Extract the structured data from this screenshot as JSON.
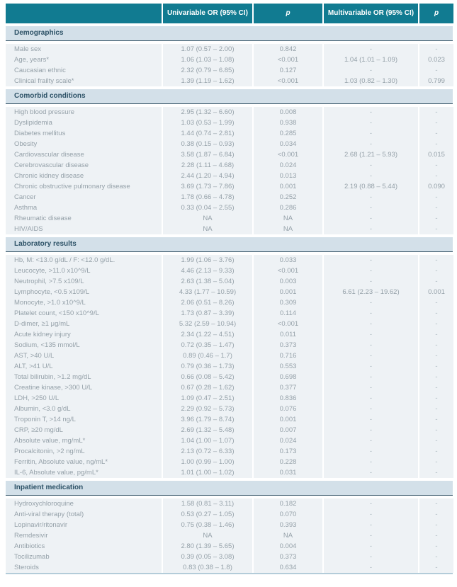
{
  "colors": {
    "header_teal": "#117b91",
    "section_band_blue": "#d3e0e9",
    "section_border_dark": "#3c5a6c",
    "row_background": "#eef2f5",
    "bottom_rule_blue": "#b3ccd9",
    "body_text_gray": "#95a1a9",
    "section_text_navy": "#2c5166",
    "header_text": "#ffffff"
  },
  "table": {
    "columns": [
      "",
      "Univariable OR (95% CI)",
      "p",
      "Multivariable OR (95% CI)",
      "p"
    ],
    "sections": [
      {
        "title": "Demographics",
        "rows": [
          {
            "label": "Male sex",
            "or1": "1.07 (0.57 – 2.00)",
            "p1": "0.842",
            "or2": "-",
            "p2": "-"
          },
          {
            "label": "Age, years*",
            "or1": "1.06 (1.03 – 1.08)",
            "p1": "<0.001",
            "or2": "1.04 (1.01 – 1.09)",
            "p2": "0.023"
          },
          {
            "label": "Caucasian ethnic",
            "or1": "2.32 (0.79 – 6.85)",
            "p1": "0.127",
            "or2": "-",
            "p2": "-"
          },
          {
            "label": "Clinical frailty scale*",
            "or1": "1.39 (1.19 – 1.62)",
            "p1": "<0.001",
            "or2": "1.03 (0.82 – 1.30)",
            "p2": "0.799"
          }
        ]
      },
      {
        "title": "Comorbid conditions",
        "rows": [
          {
            "label": "High blood pressure",
            "or1": "2.95 (1.32 – 6.60)",
            "p1": "0.008",
            "or2": "-",
            "p2": "-"
          },
          {
            "label": "Dyslipidemia",
            "or1": "1.03 (0.53 – 1.99)",
            "p1": "0.938",
            "or2": "-",
            "p2": "-"
          },
          {
            "label": "Diabetes mellitus",
            "or1": "1.44 (0.74 – 2.81)",
            "p1": "0.285",
            "or2": "-",
            "p2": "-"
          },
          {
            "label": "Obesity",
            "or1": "0.38 (0.15 – 0.93)",
            "p1": "0.034",
            "or2": "-",
            "p2": "-"
          },
          {
            "label": "Cardiovascular disease",
            "or1": "3.58 (1.87 – 6.84)",
            "p1": "<0.001",
            "or2": "2.68 (1.21 – 5.93)",
            "p2": "0.015"
          },
          {
            "label": "Cerebrovascular disease",
            "or1": "2.28 (1.11 – 4.68)",
            "p1": "0.024",
            "or2": "-",
            "p2": "-"
          },
          {
            "label": "Chronic kidney disease",
            "or1": "2.44 (1.20 – 4.94)",
            "p1": "0.013",
            "or2": "-",
            "p2": "-"
          },
          {
            "label": "Chronic obstructive pulmonary disease",
            "or1": "3.69 (1.73 – 7.86)",
            "p1": "0.001",
            "or2": "2.19 (0.88 – 5.44)",
            "p2": "0.090"
          },
          {
            "label": "Cancer",
            "or1": "1.78 (0.66 – 4.78)",
            "p1": "0.252",
            "or2": "-",
            "p2": "-"
          },
          {
            "label": "Asthma",
            "or1": "0.33 (0.04 – 2.55)",
            "p1": "0.286",
            "or2": "-",
            "p2": "-"
          },
          {
            "label": "Rheumatic disease",
            "or1": "NA",
            "p1": "NA",
            "or2": "-",
            "p2": "-"
          },
          {
            "label": "HIV/AIDS",
            "or1": "NA",
            "p1": "NA",
            "or2": "-",
            "p2": "-"
          }
        ]
      },
      {
        "title": "Laboratory results",
        "rows": [
          {
            "label": "Hb, M: <13.0 g/dL / F: <12.0 g/dL.",
            "or1": "1.99 (1.06 – 3.76)",
            "p1": "0.033",
            "or2": "-",
            "p2": "-"
          },
          {
            "label": "Leucocyte, >11.0 x10^9/L",
            "or1": "4.46 (2.13 – 9.33)",
            "p1": "<0.001",
            "or2": "-",
            "p2": "-"
          },
          {
            "label": "Neutrophil, >7.5 x109/L",
            "or1": "2.63 (1.38 – 5.04)",
            "p1": "0.003",
            "or2": "-",
            "p2": "-"
          },
          {
            "label": "Lymphocyte, <0.5 x109/L",
            "or1": "4.33 (1.77 – 10.59)",
            "p1": "0.001",
            "or2": "6.61 (2.23 – 19.62)",
            "p2": "0.001"
          },
          {
            "label": "Monocyte, >1.0 x10^9/L",
            "or1": "2.06 (0.51 – 8.26)",
            "p1": "0.309",
            "or2": "-",
            "p2": "-"
          },
          {
            "label": "Platelet count, <150 x10^9/L",
            "or1": "1.73 (0.87 – 3.39)",
            "p1": "0.114",
            "or2": "-",
            "p2": "-"
          },
          {
            "label": "D-dimer, ≥1 μg/mL",
            "or1": "5.32 (2.59 – 10.94)",
            "p1": "<0.001",
            "or2": "-",
            "p2": "-"
          },
          {
            "label": "Acute kidney injury",
            "or1": "2.34 (1.22 – 4.51)",
            "p1": "0.011",
            "or2": "-",
            "p2": "-"
          },
          {
            "label": "Sodium, <135 mmol/L",
            "or1": "0.72 (0.35 – 1.47)",
            "p1": "0.373",
            "or2": "-",
            "p2": "-"
          },
          {
            "label": "AST, >40 U/L",
            "or1": "0.89 (0.46 – 1.7)",
            "p1": "0.716",
            "or2": "-",
            "p2": "-"
          },
          {
            "label": "ALT, >41 U/L",
            "or1": "0.79 (0.36 – 1.73)",
            "p1": "0.553",
            "or2": "-",
            "p2": "-"
          },
          {
            "label": "Total bilirubin, >1.2 mg/dL",
            "or1": "0.66 (0.08 – 5.42)",
            "p1": "0.698",
            "or2": "-",
            "p2": "-"
          },
          {
            "label": "Creatine kinase, >300 U/L",
            "or1": "0.67 (0.28 – 1.62)",
            "p1": "0.377",
            "or2": "-",
            "p2": "-"
          },
          {
            "label": "LDH, >250 U/L",
            "or1": "1.09 (0.47 – 2.51)",
            "p1": "0.836",
            "or2": "-",
            "p2": "-"
          },
          {
            "label": "Albumin, <3.0 g/dL",
            "or1": "2.29 (0.92 – 5.73)",
            "p1": "0.076",
            "or2": "-",
            "p2": "-"
          },
          {
            "label": "Troponin T, >14 ng/L",
            "or1": "3.96 (1.79 – 8.74)",
            "p1": "0.001",
            "or2": "-",
            "p2": "-"
          },
          {
            "label": "CRP, ≥20 mg/dL",
            "or1": "2.69 (1.32 – 5.48)",
            "p1": "0.007",
            "or2": "-",
            "p2": "-"
          },
          {
            "label": "Absolute value, mg/mL*",
            "or1": "1.04 (1.00 – 1.07)",
            "p1": "0.024",
            "or2": "-",
            "p2": "-"
          },
          {
            "label": "Procalcitonin, >2 ng/mL",
            "or1": "2.13 (0.72 – 6.33)",
            "p1": "0.173",
            "or2": "-",
            "p2": "-"
          },
          {
            "label": "Ferritin, Absolute value, ng/mL*",
            "or1": "1.00 (0.99 – 1.00)",
            "p1": "0.228",
            "or2": "-",
            "p2": "-"
          },
          {
            "label": "IL-6, Absolute value, pg/mL*",
            "or1": "1.01 (1.00 – 1.02)",
            "p1": "0.031",
            "or2": "-",
            "p2": "-"
          }
        ]
      },
      {
        "title": "Inpatient medication",
        "rows": [
          {
            "label": "Hydroxychloroquine",
            "or1": "1.58 (0.81 – 3.11)",
            "p1": "0.182",
            "or2": "-",
            "p2": "-"
          },
          {
            "label": "Anti-viral therapy (total)",
            "or1": "0.53 (0.27 – 1.05)",
            "p1": "0.070",
            "or2": "-",
            "p2": "-"
          },
          {
            "label": "Lopinavir/ritonavir",
            "or1": "0.75 (0.38 – 1.46)",
            "p1": "0.393",
            "or2": "-",
            "p2": "-"
          },
          {
            "label": "Remdesivir",
            "or1": "NA",
            "p1": "NA",
            "or2": "-",
            "p2": "-"
          },
          {
            "label": "Antibiotics",
            "or1": "2.80 (1.39 – 5.65)",
            "p1": "0.004",
            "or2": "-",
            "p2": "-"
          },
          {
            "label": "Tocilizumab",
            "or1": "0.39 (0.05 – 3.08)",
            "p1": "0.373",
            "or2": "-",
            "p2": "-"
          },
          {
            "label": "Steroids",
            "or1": "0.83 (0.38 – 1.8)",
            "p1": "0.634",
            "or2": "-",
            "p2": "-"
          }
        ]
      }
    ]
  }
}
